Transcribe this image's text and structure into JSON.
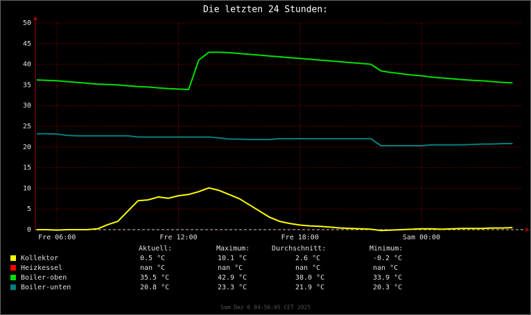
{
  "chart_data": {
    "type": "line",
    "title": "Die letzten 24 Stunden:",
    "x": [
      5,
      5.5,
      6,
      6.5,
      7,
      7.5,
      8,
      8.5,
      9,
      9.5,
      10,
      10.5,
      11,
      11.5,
      12,
      12.5,
      13,
      13.5,
      14,
      14.5,
      15,
      15.5,
      16,
      16.5,
      17,
      17.5,
      18,
      18.5,
      19,
      19.5,
      20,
      20.5,
      21,
      21.5,
      22,
      22.5,
      23,
      23.5,
      24,
      24.5,
      25,
      25.5,
      26,
      26.5,
      27,
      27.5,
      28,
      28.5
    ],
    "xlim": [
      4.93,
      28.93
    ],
    "xticks": [
      {
        "value": 6,
        "label": "Fre 06:00"
      },
      {
        "value": 12,
        "label": "Fre 12:00"
      },
      {
        "value": 18,
        "label": "Fre 18:00"
      },
      {
        "value": 24,
        "label": "Sam 00:00"
      }
    ],
    "ylim": [
      0,
      50
    ],
    "yticks": [
      0,
      5,
      10,
      15,
      20,
      25,
      30,
      35,
      40,
      45,
      50
    ],
    "grid": true,
    "series": [
      {
        "name": "Kollektor",
        "color": "#ffff00",
        "values": [
          0,
          0,
          -0.1,
          0,
          0,
          0,
          0.2,
          1.2,
          2.0,
          4.5,
          7.0,
          7.2,
          7.9,
          7.6,
          8.2,
          8.5,
          9.2,
          10.1,
          9.5,
          8.5,
          7.5,
          6.0,
          4.5,
          3.0,
          2.0,
          1.5,
          1.1,
          0.9,
          0.8,
          0.6,
          0.4,
          0.3,
          0.2,
          0.1,
          -0.2,
          -0.1,
          0,
          0.1,
          0.2,
          0.2,
          0.1,
          0.2,
          0.3,
          0.3,
          0.3,
          0.4,
          0.4,
          0.5
        ]
      },
      {
        "name": "Heizkessel",
        "color": "#ff0000",
        "values": [
          null,
          null,
          null,
          null,
          null,
          null,
          null,
          null,
          null,
          null,
          null,
          null,
          null,
          null,
          null,
          null,
          null,
          null,
          null,
          null,
          null,
          null,
          null,
          null,
          null,
          null,
          null,
          null,
          null,
          null,
          null,
          null,
          null,
          null,
          null,
          null,
          null,
          null,
          null,
          null,
          null,
          null,
          null,
          null,
          null,
          null,
          null,
          null
        ]
      },
      {
        "name": "Boiler-oben",
        "color": "#00e000",
        "values": [
          36.2,
          36.1,
          36.0,
          35.8,
          35.6,
          35.4,
          35.2,
          35.1,
          35.0,
          34.8,
          34.6,
          34.5,
          34.3,
          34.1,
          34.0,
          33.9,
          41.0,
          42.9,
          42.9,
          42.8,
          42.6,
          42.4,
          42.2,
          42.0,
          41.8,
          41.6,
          41.4,
          41.2,
          41.0,
          40.8,
          40.6,
          40.4,
          40.2,
          40.0,
          38.4,
          38.0,
          37.7,
          37.4,
          37.2,
          36.9,
          36.7,
          36.5,
          36.3,
          36.1,
          36.0,
          35.8,
          35.6,
          35.5
        ]
      },
      {
        "name": "Boiler-unten",
        "color": "#008080",
        "values": [
          23.2,
          23.2,
          23.1,
          22.8,
          22.7,
          22.7,
          22.7,
          22.7,
          22.7,
          22.7,
          22.4,
          22.4,
          22.4,
          22.4,
          22.4,
          22.4,
          22.4,
          22.4,
          22.2,
          21.9,
          21.9,
          21.8,
          21.8,
          21.8,
          22.0,
          22.0,
          22.0,
          22.0,
          22.0,
          22.0,
          22.0,
          22.0,
          22.0,
          22.0,
          20.3,
          20.3,
          20.3,
          20.3,
          20.3,
          20.5,
          20.5,
          20.5,
          20.5,
          20.6,
          20.7,
          20.7,
          20.8,
          20.8
        ]
      }
    ],
    "stats": {
      "headers": [
        "Aktuell:",
        "Maximum:",
        "Durchschnitt:",
        "Minimum:"
      ],
      "rows": [
        [
          "0.5 °C",
          "10.1 °C",
          "2.6 °C",
          "-0.2 °C"
        ],
        [
          "nan °C",
          "nan °C",
          "nan °C",
          "nan °C"
        ],
        [
          "35.5 °C",
          "42.9 °C",
          "38.0 °C",
          "33.9 °C"
        ],
        [
          "20.8 °C",
          "23.3 °C",
          "21.9 °C",
          "20.3 °C"
        ]
      ]
    },
    "footer": "Sam Dez  6 04:56:05 CET 2025"
  }
}
